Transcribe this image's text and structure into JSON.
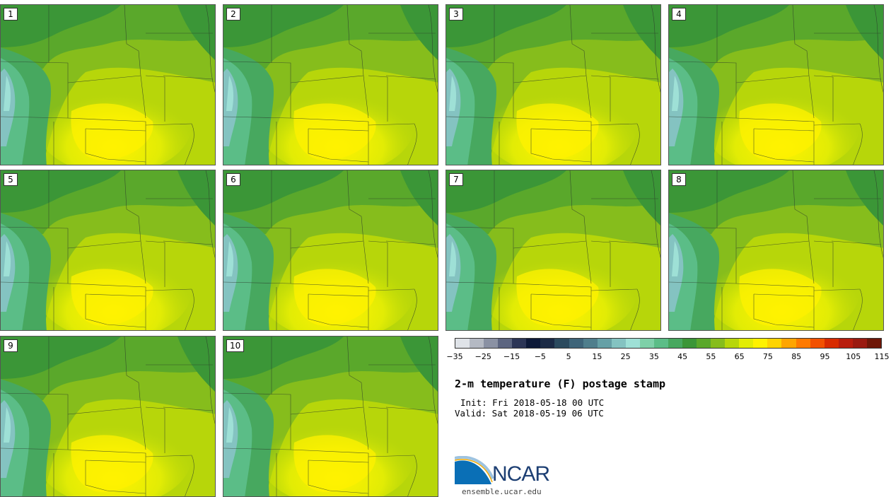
{
  "panels": [
    {
      "label": "1"
    },
    {
      "label": "2"
    },
    {
      "label": "3"
    },
    {
      "label": "4"
    },
    {
      "label": "5"
    },
    {
      "label": "6"
    },
    {
      "label": "7"
    },
    {
      "label": "8"
    },
    {
      "label": "9"
    },
    {
      "label": "10"
    }
  ],
  "colorbar": {
    "colors": [
      "#dfe3e8",
      "#b4b9c3",
      "#8a91a3",
      "#5c6580",
      "#2c3556",
      "#0d1938",
      "#1b2a45",
      "#2b4a5e",
      "#3e6479",
      "#4f7e8c",
      "#66a0a6",
      "#84c3c1",
      "#9ee0d6",
      "#7ed0a8",
      "#5bbd87",
      "#47a85f",
      "#3b9637",
      "#5aa82b",
      "#86bd1c",
      "#b7d60a",
      "#e2ec05",
      "#fff200",
      "#ffd400",
      "#ffa500",
      "#ff7a00",
      "#f25100",
      "#d82b00",
      "#b81d0d",
      "#9a1a10",
      "#6e1708"
    ],
    "ticks": [
      "−35",
      "−25",
      "−15",
      "−5",
      "5",
      "15",
      "25",
      "35",
      "45",
      "55",
      "65",
      "75",
      "85",
      "95",
      "105",
      "115"
    ]
  },
  "title": "2-m temperature (F) postage stamp",
  "init": "Init: Fri 2018-05-18 00 UTC",
  "valid": "Valid: Sat 2018-05-19 06 UTC",
  "logo": {
    "text": "NCAR",
    "site": "ensemble.ucar.edu"
  }
}
